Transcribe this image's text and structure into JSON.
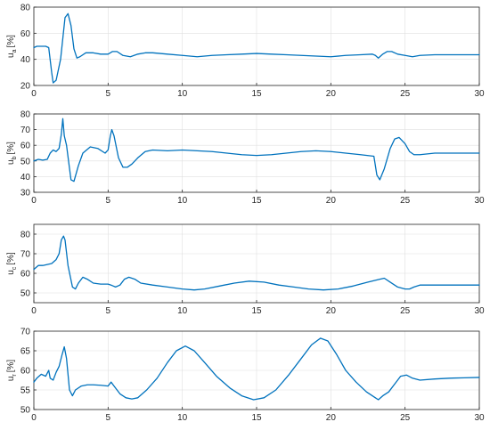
{
  "chart_data": [
    {
      "type": "line",
      "ylabel_main": "u",
      "ylabel_sub": "a",
      "ylabel_unit": "[%]",
      "xlim": [
        0,
        30
      ],
      "ylim": [
        20,
        80
      ],
      "xticks": [
        "0",
        "5",
        "10",
        "15",
        "20",
        "25",
        "30"
      ],
      "yticks": [
        "20",
        "40",
        "60",
        "80"
      ],
      "grid": true,
      "series": [
        {
          "color": "#0072BD",
          "x": [
            0,
            0.2,
            0.8,
            1.0,
            1.2,
            1.3,
            1.5,
            1.8,
            2.1,
            2.3,
            2.5,
            2.7,
            2.9,
            3.1,
            3.5,
            4.0,
            4.5,
            5.0,
            5.3,
            5.6,
            6.0,
            6.5,
            7.0,
            7.5,
            8.0,
            9.0,
            10.0,
            11.0,
            12.0,
            13.0,
            14.0,
            15.0,
            16.0,
            17.0,
            18.0,
            19.0,
            20.0,
            21.0,
            22.0,
            22.8,
            23.0,
            23.2,
            23.5,
            23.8,
            24.1,
            24.5,
            25.0,
            25.5,
            26.0,
            27.0,
            28.0,
            29.0,
            30.0
          ],
          "y": [
            49,
            50,
            50,
            49,
            30,
            22,
            24,
            40,
            72,
            75,
            66,
            48,
            41,
            42,
            45,
            45,
            44,
            44,
            46,
            46,
            43,
            42,
            44,
            45,
            45,
            44,
            43,
            42,
            43,
            43.5,
            44,
            44.5,
            44,
            43.5,
            43,
            42.5,
            42,
            43,
            43.5,
            44,
            43,
            41,
            44,
            46,
            46,
            44,
            43,
            42,
            43,
            43.5,
            43.5,
            43.5,
            43.5
          ]
        }
      ]
    },
    {
      "type": "line",
      "ylabel_main": "u",
      "ylabel_sub": "b",
      "ylabel_unit": "[%]",
      "xlim": [
        0,
        30
      ],
      "ylim": [
        30,
        80
      ],
      "xticks": [
        "0",
        "5",
        "10",
        "15",
        "20",
        "25",
        "30"
      ],
      "yticks": [
        "30",
        "40",
        "50",
        "60",
        "70",
        "80"
      ],
      "grid": true,
      "series": [
        {
          "color": "#0072BD",
          "x": [
            0,
            0.3,
            0.6,
            0.9,
            1.1,
            1.3,
            1.5,
            1.7,
            1.85,
            1.95,
            2.05,
            2.2,
            2.5,
            2.7,
            3.0,
            3.3,
            3.8,
            4.3,
            4.8,
            5.0,
            5.15,
            5.25,
            5.4,
            5.7,
            6.0,
            6.3,
            6.6,
            7.0,
            7.5,
            8.0,
            9.0,
            10.0,
            11.0,
            12.0,
            13.0,
            14.0,
            15.0,
            16.0,
            17.0,
            18.0,
            19.0,
            20.0,
            21.0,
            22.0,
            22.9,
            23.1,
            23.3,
            23.6,
            24.0,
            24.3,
            24.6,
            25.0,
            25.3,
            25.6,
            26.0,
            26.5,
            27.0,
            28.0,
            29.0,
            30.0
          ],
          "y": [
            50,
            51,
            50.5,
            51,
            55,
            57,
            56,
            58,
            67,
            77,
            66,
            60,
            38,
            37,
            47,
            55,
            59,
            58,
            55,
            57,
            66,
            70,
            66,
            52,
            46,
            46,
            48,
            52,
            56,
            57,
            56.5,
            57,
            56.5,
            56,
            55,
            54,
            53.5,
            54,
            55,
            56,
            56.5,
            56,
            55,
            54,
            53,
            41,
            38,
            45,
            58,
            64,
            65,
            61,
            56,
            54,
            54,
            54.5,
            55,
            55,
            55,
            55
          ]
        }
      ]
    },
    {
      "type": "line",
      "ylabel_main": "u",
      "ylabel_sub": "c",
      "ylabel_unit": "[%]",
      "xlim": [
        0,
        30
      ],
      "ylim": [
        45,
        85
      ],
      "xticks": [
        "0",
        "5",
        "10",
        "15",
        "20",
        "25",
        "30"
      ],
      "yticks": [
        "50",
        "60",
        "70",
        "80"
      ],
      "grid": true,
      "series": [
        {
          "color": "#0072BD",
          "x": [
            0,
            0.3,
            0.6,
            0.9,
            1.2,
            1.5,
            1.7,
            1.85,
            2.0,
            2.1,
            2.3,
            2.6,
            2.8,
            3.0,
            3.3,
            3.6,
            4.0,
            4.5,
            5.0,
            5.2,
            5.5,
            5.8,
            6.1,
            6.4,
            6.8,
            7.2,
            8.0,
            9.0,
            10.0,
            10.8,
            11.5,
            12.5,
            13.5,
            14.5,
            15.5,
            16.5,
            17.5,
            18.5,
            19.5,
            20.5,
            21.5,
            22.5,
            23.3,
            23.6,
            24.0,
            24.5,
            25.0,
            25.3,
            25.6,
            26.0,
            27.0,
            28.0,
            29.0,
            30.0
          ],
          "y": [
            62,
            64,
            64,
            64.5,
            65,
            67,
            70,
            77,
            79,
            77,
            64,
            53,
            52,
            55,
            58,
            57,
            55,
            54.5,
            54.5,
            54,
            53,
            54,
            57,
            58,
            57,
            55,
            54,
            53,
            52,
            51.5,
            52,
            53.5,
            55,
            56,
            55.5,
            54,
            53,
            52,
            51.5,
            52,
            53.5,
            55.5,
            57,
            57.5,
            55.5,
            53,
            52,
            52,
            53,
            54,
            54,
            54,
            54,
            54
          ]
        }
      ]
    },
    {
      "type": "line",
      "ylabel_main": "u",
      "ylabel_sub": "r",
      "ylabel_unit": "[%]",
      "xlim": [
        0,
        30
      ],
      "ylim": [
        50,
        70
      ],
      "xticks": [
        "0",
        "5",
        "10",
        "15",
        "20",
        "25",
        "30"
      ],
      "yticks": [
        "50",
        "55",
        "60",
        "65",
        "70"
      ],
      "grid": true,
      "series": [
        {
          "color": "#0072BD",
          "x": [
            0,
            0.2,
            0.5,
            0.8,
            1.0,
            1.1,
            1.3,
            1.5,
            1.7,
            1.9,
            2.05,
            2.2,
            2.4,
            2.6,
            2.8,
            3.2,
            3.6,
            4.0,
            4.5,
            5.0,
            5.2,
            5.4,
            5.8,
            6.2,
            6.6,
            7.0,
            7.6,
            8.3,
            9.0,
            9.6,
            10.2,
            10.8,
            11.5,
            12.3,
            13.2,
            14.0,
            14.8,
            15.5,
            16.3,
            17.2,
            18.0,
            18.7,
            19.3,
            19.8,
            20.4,
            21.0,
            21.7,
            22.4,
            23.0,
            23.2,
            23.5,
            23.9,
            24.3,
            24.7,
            25.1,
            25.5,
            26.0,
            27.0,
            28.0,
            29.0,
            30.0
          ],
          "y": [
            57,
            58,
            59,
            58.5,
            60,
            58,
            57.5,
            59.5,
            61,
            64,
            66,
            63,
            55,
            53.5,
            55,
            56,
            56.3,
            56.3,
            56.2,
            56,
            57,
            56,
            54,
            53,
            52.7,
            53,
            55,
            58,
            62,
            65,
            66.2,
            65,
            62,
            58.5,
            55.5,
            53.5,
            52.5,
            53,
            55,
            59,
            63,
            66.5,
            68.2,
            67.5,
            64,
            60,
            57,
            54.5,
            53,
            52.5,
            53.5,
            54.5,
            56.5,
            58.5,
            58.8,
            58,
            57.5,
            57.8,
            58,
            58.1,
            58.2
          ]
        }
      ]
    }
  ]
}
